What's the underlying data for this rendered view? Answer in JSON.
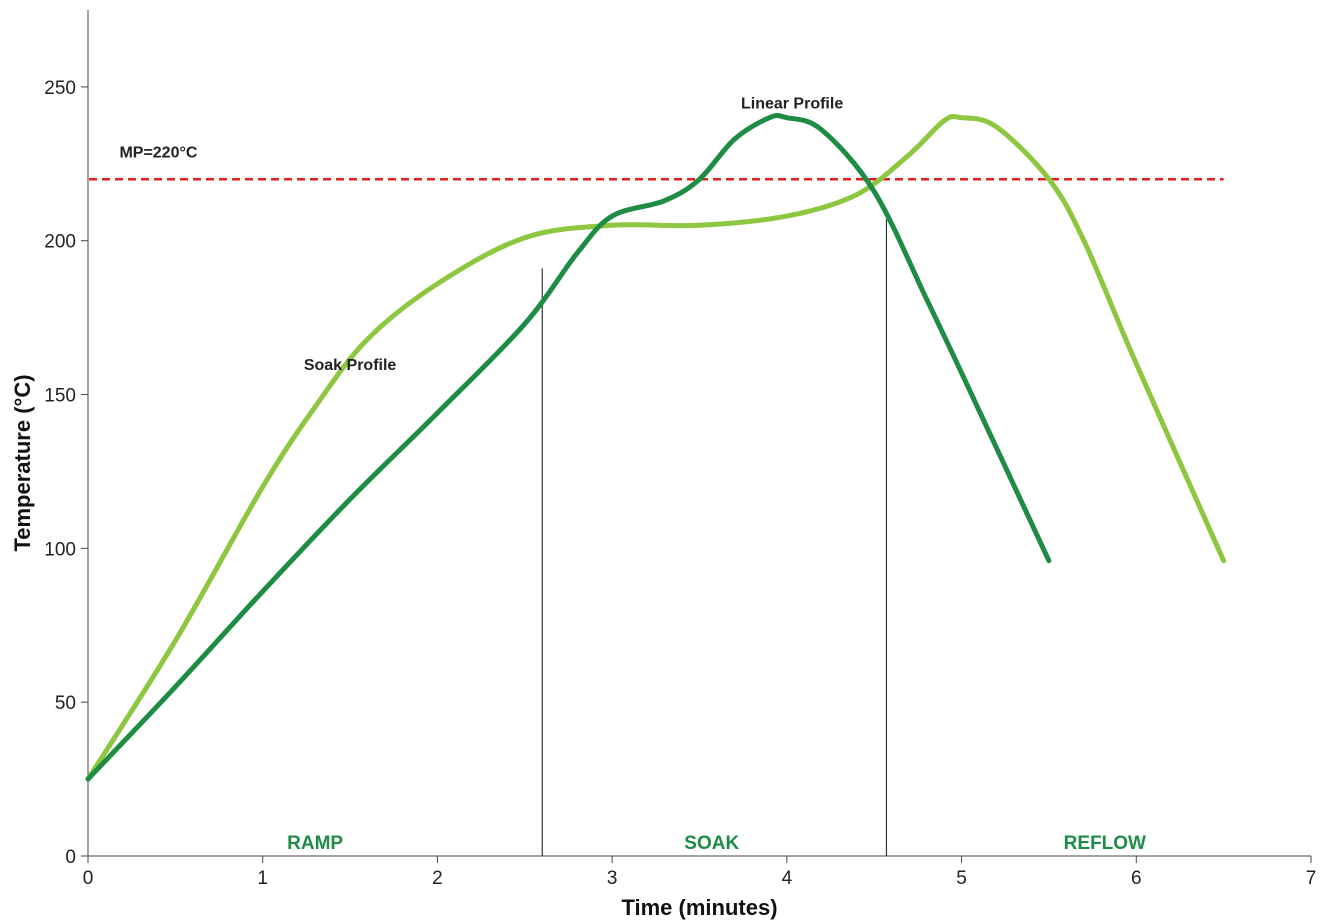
{
  "chart_data": {
    "type": "line",
    "title": "",
    "xlabel": "Time (minutes)",
    "ylabel": "Temperature (°C)",
    "xlim": [
      0,
      7
    ],
    "ylim": [
      0,
      275
    ],
    "xticks": [
      "0",
      "1",
      "2",
      "3",
      "4",
      "5",
      "6",
      "7"
    ],
    "yticks": [
      "0",
      "50",
      "100",
      "150",
      "200",
      "250"
    ],
    "grid": false,
    "legend": "none",
    "series": [
      {
        "name": "Soak Profile",
        "color": "#8dc63f",
        "points": [
          {
            "x": 0,
            "y": 25
          },
          {
            "x": 0.5,
            "y": 70
          },
          {
            "x": 1.0,
            "y": 120
          },
          {
            "x": 1.3,
            "y": 146
          },
          {
            "x": 1.6,
            "y": 168
          },
          {
            "x": 2.0,
            "y": 186
          },
          {
            "x": 2.5,
            "y": 201
          },
          {
            "x": 3.0,
            "y": 205
          },
          {
            "x": 3.5,
            "y": 205
          },
          {
            "x": 4.0,
            "y": 208
          },
          {
            "x": 4.4,
            "y": 215
          },
          {
            "x": 4.7,
            "y": 228
          },
          {
            "x": 4.9,
            "y": 239
          },
          {
            "x": 5.0,
            "y": 240
          },
          {
            "x": 5.2,
            "y": 237
          },
          {
            "x": 5.5,
            "y": 220
          },
          {
            "x": 5.7,
            "y": 200
          },
          {
            "x": 6.0,
            "y": 160
          },
          {
            "x": 6.5,
            "y": 96
          }
        ]
      },
      {
        "name": "Linear Profile",
        "color": "#1e8c45",
        "points": [
          {
            "x": 0,
            "y": 25
          },
          {
            "x": 0.5,
            "y": 55
          },
          {
            "x": 1.0,
            "y": 86
          },
          {
            "x": 1.5,
            "y": 116
          },
          {
            "x": 2.0,
            "y": 144
          },
          {
            "x": 2.5,
            "y": 173
          },
          {
            "x": 2.8,
            "y": 196
          },
          {
            "x": 3.0,
            "y": 208
          },
          {
            "x": 3.3,
            "y": 213
          },
          {
            "x": 3.5,
            "y": 220
          },
          {
            "x": 3.7,
            "y": 233
          },
          {
            "x": 3.9,
            "y": 240
          },
          {
            "x": 4.0,
            "y": 240
          },
          {
            "x": 4.2,
            "y": 236
          },
          {
            "x": 4.5,
            "y": 216
          },
          {
            "x": 4.8,
            "y": 181
          },
          {
            "x": 5.0,
            "y": 157
          },
          {
            "x": 5.5,
            "y": 96
          }
        ]
      }
    ],
    "reference_line": {
      "label": "MP=220°C",
      "y": 220,
      "color": "#e02020"
    },
    "zone_boundaries": [
      {
        "x": 2.6,
        "y_top": 191
      },
      {
        "x": 4.57,
        "y_top": 207
      }
    ],
    "zones": [
      {
        "label": "RAMP",
        "x": 1.3
      },
      {
        "label": "SOAK",
        "x": 3.57
      },
      {
        "label": "REFLOW",
        "x": 5.82
      }
    ],
    "zone_color": "#1e8c45",
    "annotations": [
      {
        "text": "Soak Profile",
        "x": 1.5,
        "y": 158
      },
      {
        "text": "Linear Profile",
        "x": 4.03,
        "y": 243
      },
      {
        "text": "MP=220°C",
        "x": 0.18,
        "y": 227
      }
    ]
  }
}
